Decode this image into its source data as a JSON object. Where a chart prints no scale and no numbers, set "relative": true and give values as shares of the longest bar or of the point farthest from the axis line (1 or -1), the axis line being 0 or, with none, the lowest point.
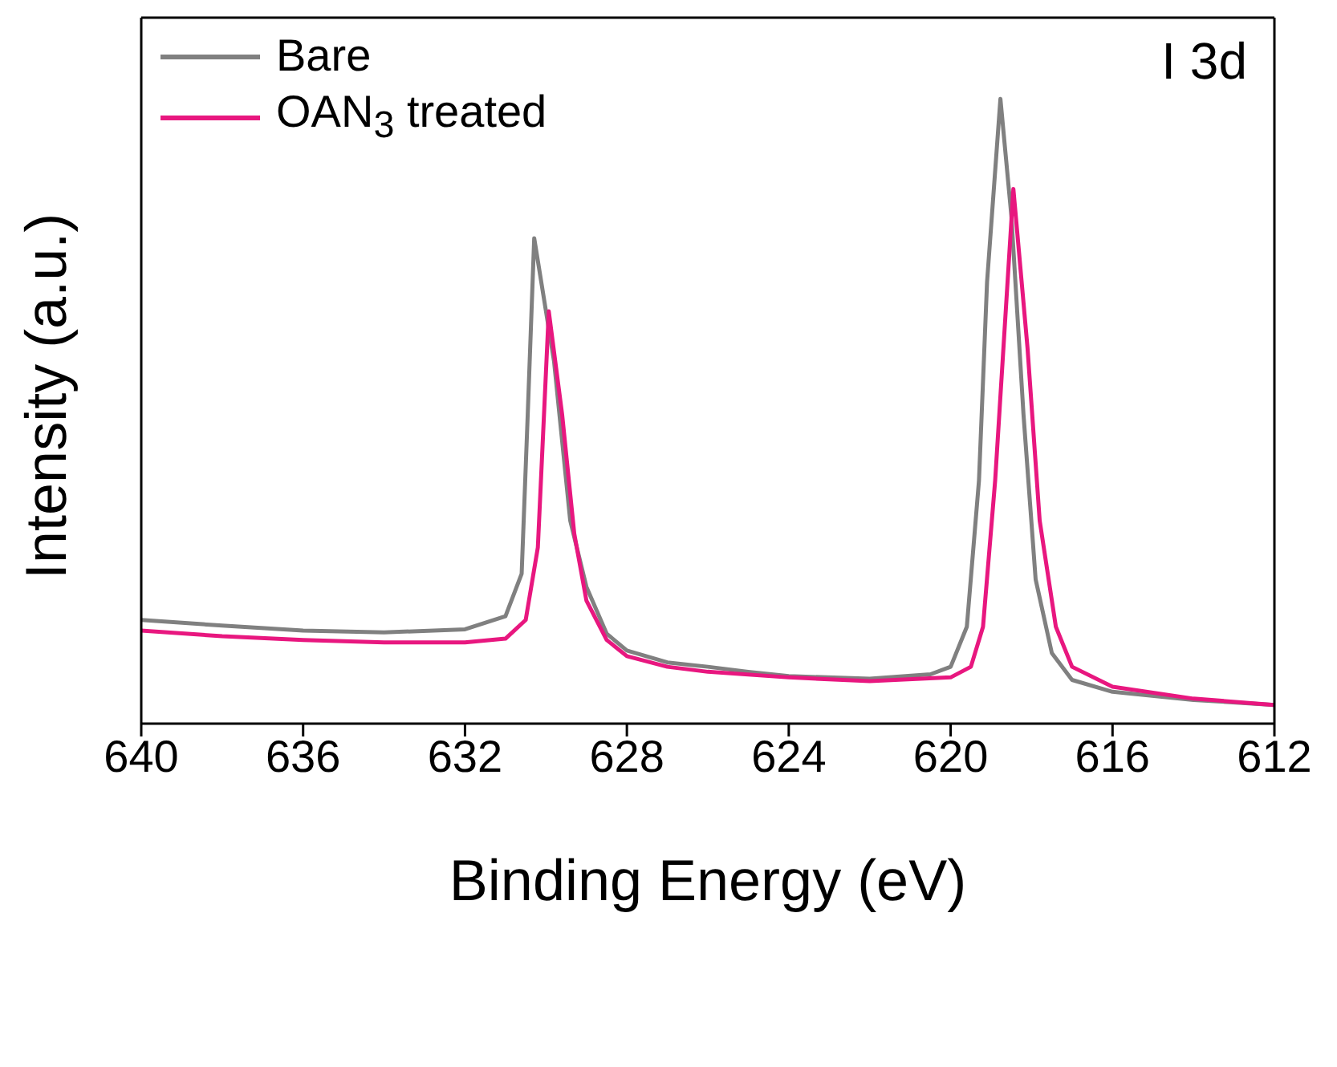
{
  "chart_data": {
    "type": "line",
    "xlabel": "Binding Energy (eV)",
    "ylabel": "Intensity (a.u.)",
    "annotations": [
      "I 3d"
    ],
    "relative": true,
    "xlim": [
      640,
      612
    ],
    "xticks": [
      640,
      636,
      632,
      628,
      624,
      620,
      616,
      612
    ],
    "legend": "top left",
    "marker": "none",
    "line_style": "solid",
    "series": [
      {
        "name": "Bare",
        "color": "#808080",
        "x": [
          640,
          638,
          636,
          634,
          632,
          631,
          630.6,
          630.45,
          630.29,
          629.8,
          629.4,
          629,
          628.5,
          628,
          627,
          626,
          625,
          624,
          622,
          620.5,
          620,
          619.6,
          619.3,
          619.1,
          618.77,
          618.5,
          618.2,
          617.9,
          617.5,
          617,
          616,
          614,
          612
        ],
        "values": [
          0.166,
          0.157,
          0.149,
          0.146,
          0.151,
          0.172,
          0.24,
          0.495,
          0.777,
          0.58,
          0.325,
          0.219,
          0.144,
          0.117,
          0.098,
          0.091,
          0.083,
          0.076,
          0.072,
          0.079,
          0.091,
          0.155,
          0.389,
          0.707,
          1,
          0.813,
          0.495,
          0.231,
          0.113,
          0.07,
          0.051,
          0.038,
          0.03
        ]
      },
      {
        "name": "OAN$_{3}$ treated",
        "color": "#e8177f",
        "x": [
          640,
          638,
          636,
          634,
          632,
          631,
          630.5,
          630.2,
          629.93,
          629.6,
          629.3,
          629,
          628.5,
          628,
          627,
          626,
          624,
          622,
          620,
          619.5,
          619.2,
          618.9,
          618.45,
          618.1,
          617.8,
          617.4,
          617,
          616,
          614,
          612
        ],
        "values": [
          0.149,
          0.14,
          0.134,
          0.13,
          0.13,
          0.136,
          0.166,
          0.282,
          0.66,
          0.495,
          0.304,
          0.197,
          0.134,
          0.108,
          0.091,
          0.083,
          0.074,
          0.068,
          0.074,
          0.091,
          0.155,
          0.389,
          0.856,
          0.601,
          0.325,
          0.155,
          0.091,
          0.059,
          0.04,
          0.03
        ]
      }
    ]
  }
}
